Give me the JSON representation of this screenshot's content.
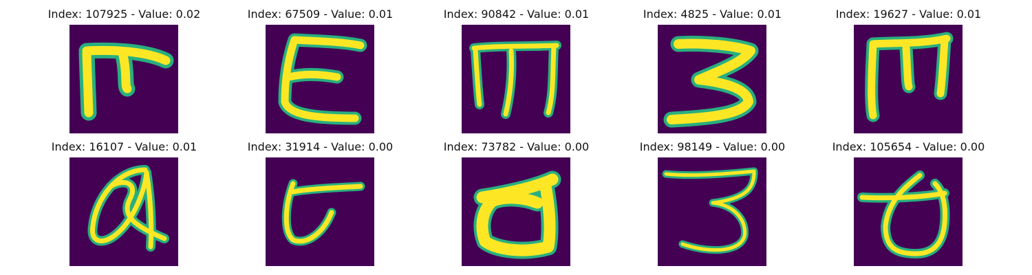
{
  "panels": [
    {
      "title": "Index: 107925 - Value: 0.02",
      "glyph": "sample-107925"
    },
    {
      "title": "Index: 67509 - Value: 0.01",
      "glyph": "sample-67509"
    },
    {
      "title": "Index: 90842 - Value: 0.01",
      "glyph": "sample-90842"
    },
    {
      "title": "Index: 4825 - Value: 0.01",
      "glyph": "sample-4825"
    },
    {
      "title": "Index: 19627 - Value: 0.01",
      "glyph": "sample-19627"
    },
    {
      "title": "Index: 16107 - Value: 0.01",
      "glyph": "sample-16107"
    },
    {
      "title": "Index: 31914 - Value: 0.00",
      "glyph": "sample-31914"
    },
    {
      "title": "Index: 73782 - Value: 0.00",
      "glyph": "sample-73782"
    },
    {
      "title": "Index: 98149 - Value: 0.00",
      "glyph": "sample-98149"
    },
    {
      "title": "Index: 105654 - Value: 0.00",
      "glyph": "sample-105654"
    }
  ],
  "colors": {
    "background": "#440154",
    "edge": "#29af7f",
    "stroke": "#fde725"
  }
}
